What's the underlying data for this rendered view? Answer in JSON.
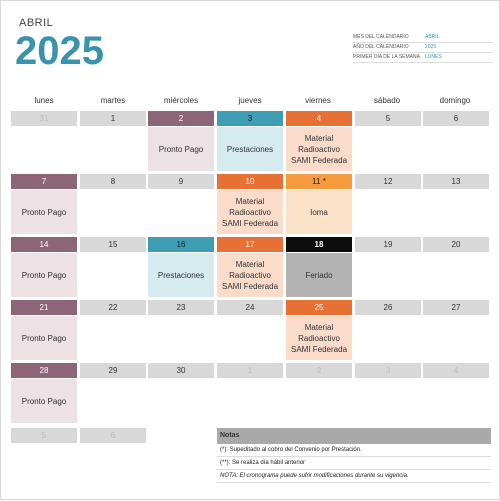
{
  "header": {
    "month": "ABRIL",
    "year": "2025",
    "meta": [
      {
        "label": "MES DEL CALENDARIO",
        "value": "ABRIL"
      },
      {
        "label": "AÑO DEL CALENDARIO",
        "value": "2025"
      },
      {
        "label": "PRIMER DÍA DE LA SEMANA",
        "value": "LUNES"
      }
    ]
  },
  "colors": {
    "pronto_header": "#8c6577",
    "pronto_body": "#ece1e5",
    "prest_header": "#3f9db3",
    "prest_body": "#d6ebf0",
    "material_header": "#e77134",
    "material_body": "#fbdccb",
    "ioma_header": "#f59a3f",
    "ioma_body": "#fde2ca",
    "feriado_header": "#0d0d0d",
    "feriado_body": "#b3b3b3",
    "plain_header": "#d8d8d8"
  },
  "weekdays": [
    "lunes",
    "martes",
    "miércoles",
    "jueves",
    "viernes",
    "sábado",
    "domingo"
  ],
  "weeks": [
    [
      {
        "day": "31",
        "dim": true
      },
      {
        "day": "1"
      },
      {
        "day": "2",
        "cat": "pronto",
        "event": "Pronto Pago"
      },
      {
        "day": "3",
        "cat": "prest",
        "event": "Prestaciones"
      },
      {
        "day": "4",
        "cat": "material",
        "event": "Material\nRadioactivo\nSAMI Federada"
      },
      {
        "day": "5"
      },
      {
        "day": "6"
      }
    ],
    [
      {
        "day": "7",
        "cat": "pronto",
        "event": "Pronto Pago"
      },
      {
        "day": "8"
      },
      {
        "day": "9"
      },
      {
        "day": "10",
        "cat": "material",
        "event": "Material\nRadioactivo\nSAMI Federada"
      },
      {
        "day": "11 *",
        "cat": "ioma",
        "event": "Ioma"
      },
      {
        "day": "12"
      },
      {
        "day": "13"
      }
    ],
    [
      {
        "day": "14",
        "cat": "pronto",
        "event": "Pronto Pago"
      },
      {
        "day": "15"
      },
      {
        "day": "16",
        "cat": "prest",
        "event": "Prestaciones"
      },
      {
        "day": "17",
        "cat": "material",
        "event": "Material\nRadioactivo\nSAMI Federada"
      },
      {
        "day": "18",
        "cat": "feriado",
        "event": "Feriado"
      },
      {
        "day": "19"
      },
      {
        "day": "20"
      }
    ],
    [
      {
        "day": "21",
        "cat": "pronto",
        "event": "Pronto Pago"
      },
      {
        "day": "22"
      },
      {
        "day": "23"
      },
      {
        "day": "24"
      },
      {
        "day": "25",
        "cat": "material",
        "event": "Material\nRadioactivo\nSAMI Federada"
      },
      {
        "day": "26"
      },
      {
        "day": "27"
      }
    ],
    [
      {
        "day": "28",
        "cat": "pronto",
        "event": "Pronto Pago"
      },
      {
        "day": "29"
      },
      {
        "day": "30"
      },
      {
        "day": "1",
        "dim": true
      },
      {
        "day": "2",
        "dim": true
      },
      {
        "day": "3",
        "dim": true
      },
      {
        "day": "4",
        "dim": true
      }
    ],
    [
      {
        "day": "5",
        "dim": true
      },
      {
        "day": "6",
        "dim": true
      }
    ]
  ],
  "notes": {
    "title": "Notas",
    "lines": [
      "(*): Supeditado al cobro del Convenio por Prestación.",
      "(**): Se realiza día hábil anterior",
      "NOTA: El cronograma puede sufrir modificaciones durante su vigencia."
    ]
  }
}
